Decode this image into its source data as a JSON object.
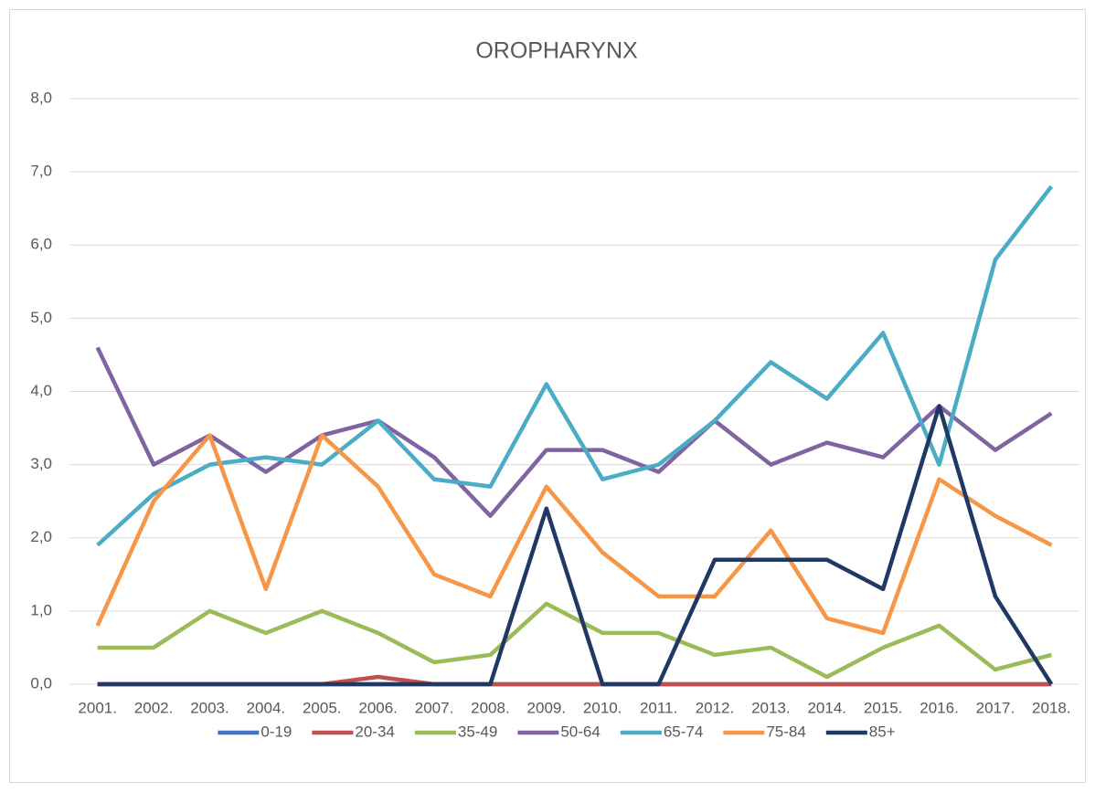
{
  "chart_data": {
    "type": "line",
    "title": "OROPHARYNX",
    "categories": [
      "2001.",
      "2002.",
      "2003.",
      "2004.",
      "2005.",
      "2006.",
      "2007.",
      "2008.",
      "2009.",
      "2010.",
      "2011.",
      "2012.",
      "2013.",
      "2014.",
      "2015.",
      "2016.",
      "2017.",
      "2018."
    ],
    "series": [
      {
        "name": "0-19",
        "color": "#4472c4",
        "values": [
          0,
          0,
          0,
          0,
          0,
          0,
          0,
          0,
          0,
          0,
          0,
          0,
          0,
          0,
          0,
          0,
          0,
          0
        ]
      },
      {
        "name": "20-34",
        "color": "#c0504d",
        "values": [
          0,
          0,
          0,
          0,
          0,
          0.1,
          0,
          0,
          0,
          0,
          0,
          0,
          0,
          0,
          0,
          0,
          0,
          0
        ]
      },
      {
        "name": "35-49",
        "color": "#9bbb59",
        "values": [
          0.5,
          0.5,
          1.0,
          0.7,
          1.0,
          0.7,
          0.3,
          0.4,
          1.1,
          0.7,
          0.7,
          0.4,
          0.5,
          0.1,
          0.5,
          0.8,
          0.2,
          0.4
        ]
      },
      {
        "name": "50-64",
        "color": "#8064a2",
        "values": [
          4.6,
          3.0,
          3.4,
          2.9,
          3.4,
          3.6,
          3.1,
          2.3,
          3.2,
          3.2,
          2.9,
          3.6,
          3.0,
          3.3,
          3.1,
          3.8,
          3.2,
          3.7
        ]
      },
      {
        "name": "65-74",
        "color": "#4bacc6",
        "values": [
          1.9,
          2.6,
          3.0,
          3.1,
          3.0,
          3.6,
          2.8,
          2.7,
          4.1,
          2.8,
          3.0,
          3.6,
          4.4,
          3.9,
          4.8,
          3.0,
          5.8,
          6.8
        ]
      },
      {
        "name": "75-84",
        "color": "#f79646",
        "values": [
          0.8,
          2.5,
          3.4,
          1.3,
          3.4,
          2.7,
          1.5,
          1.2,
          2.7,
          1.8,
          1.2,
          1.2,
          2.1,
          0.9,
          0.7,
          2.8,
          2.3,
          1.9
        ]
      },
      {
        "name": "85+",
        "color": "#1f3864",
        "values": [
          0,
          0,
          0,
          0,
          0,
          0,
          0,
          0,
          2.4,
          0,
          0,
          1.7,
          1.7,
          1.7,
          1.3,
          3.8,
          1.2,
          0
        ]
      }
    ],
    "ylim": [
      0,
      8
    ],
    "yticks": [
      {
        "value": 0,
        "label": "0,0"
      },
      {
        "value": 1,
        "label": "1,0"
      },
      {
        "value": 2,
        "label": "2,0"
      },
      {
        "value": 3,
        "label": "3,0"
      },
      {
        "value": 4,
        "label": "4,0"
      },
      {
        "value": 5,
        "label": "5,0"
      },
      {
        "value": 6,
        "label": "6,0"
      },
      {
        "value": 7,
        "label": "7,0"
      },
      {
        "value": 8,
        "label": "8,0"
      }
    ],
    "grid": true,
    "legend": "bottom"
  }
}
